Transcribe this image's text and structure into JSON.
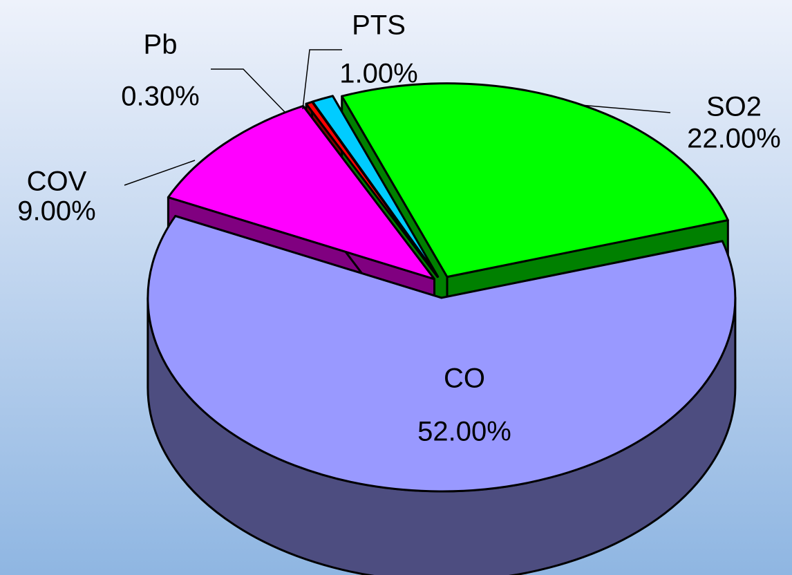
{
  "chart_data": {
    "type": "pie",
    "categories": [
      "SO2",
      "CO",
      "COV",
      "Pb",
      "PTS"
    ],
    "values": [
      22,
      52,
      9,
      0.3,
      1
    ],
    "value_labels": [
      "22.00%",
      "52.00%",
      "9.00%",
      "0.30%",
      "1.00%"
    ],
    "colors": [
      "#00ff00",
      "#9999ff",
      "#ff00ff",
      "#ff0000",
      "#00ccff"
    ]
  }
}
